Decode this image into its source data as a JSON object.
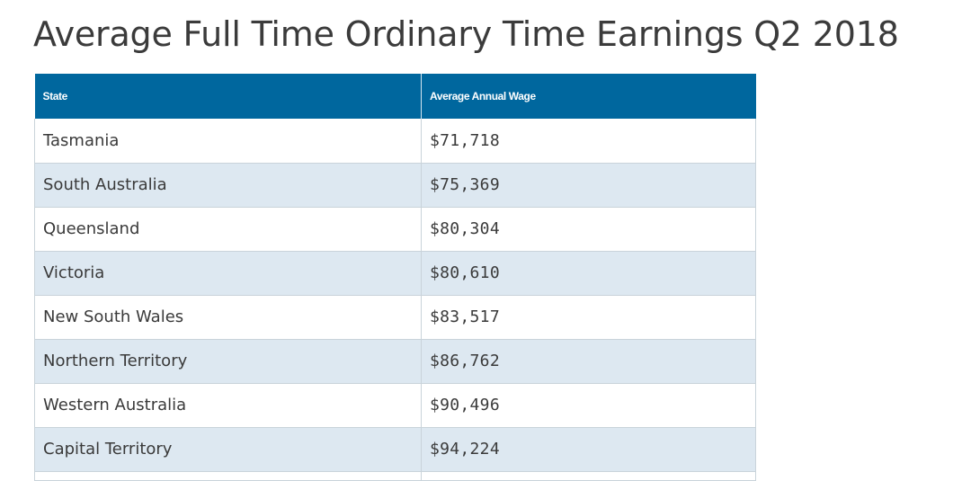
{
  "page": {
    "title": "Average Full Time Ordinary Time Earnings Q2 2018"
  },
  "table": {
    "headers": [
      "State",
      "Average Annual Wage"
    ],
    "rows": [
      {
        "state": "Tasmania",
        "wage": "$71,718"
      },
      {
        "state": "South Australia",
        "wage": "$75,369"
      },
      {
        "state": "Queensland",
        "wage": "$80,304"
      },
      {
        "state": "Victoria",
        "wage": "$80,610"
      },
      {
        "state": "New South Wales",
        "wage": "$83,517"
      },
      {
        "state": "Northern Territory",
        "wage": "$86,762"
      },
      {
        "state": "Western Australia",
        "wage": "$90,496"
      },
      {
        "state": "Capital Territory",
        "wage": "$94,224"
      }
    ]
  },
  "colors": {
    "header_bg": "#00679e",
    "row_alt_bg": "#dde8f1",
    "title_text": "#3b3b3b"
  }
}
